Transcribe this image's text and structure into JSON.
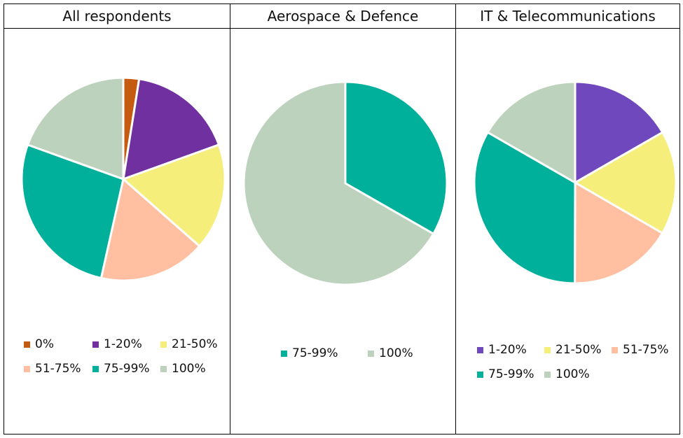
{
  "chart_data": [
    {
      "type": "pie",
      "title": "All respondents",
      "categories": [
        "0%",
        "1-20%",
        "21-50%",
        "51-75%",
        "75-99%",
        "100%"
      ],
      "values": [
        2.5,
        17,
        17,
        17,
        27,
        19.5
      ],
      "colors": [
        "#C55A11",
        "#7030A0",
        "#F5EE7A",
        "#FFBFA0",
        "#00B09B",
        "#BDD2BD"
      ],
      "legend": "bottom"
    },
    {
      "type": "pie",
      "title": "Aerospace & Defence",
      "categories": [
        "75-99%",
        "100%"
      ],
      "values": [
        33.3,
        66.7
      ],
      "colors": [
        "#00B09B",
        "#BDD2BD"
      ],
      "legend": "bottom"
    },
    {
      "type": "pie",
      "title": "IT & Telecommunications",
      "categories": [
        "1-20%",
        "21-50%",
        "51-75%",
        "75-99%",
        "100%"
      ],
      "values": [
        16.7,
        16.7,
        16.7,
        33.3,
        16.7
      ],
      "colors": [
        "#7048BD",
        "#F5EE7A",
        "#FFBFA0",
        "#00B09B",
        "#BDD2BD"
      ],
      "legend": "bottom"
    }
  ]
}
